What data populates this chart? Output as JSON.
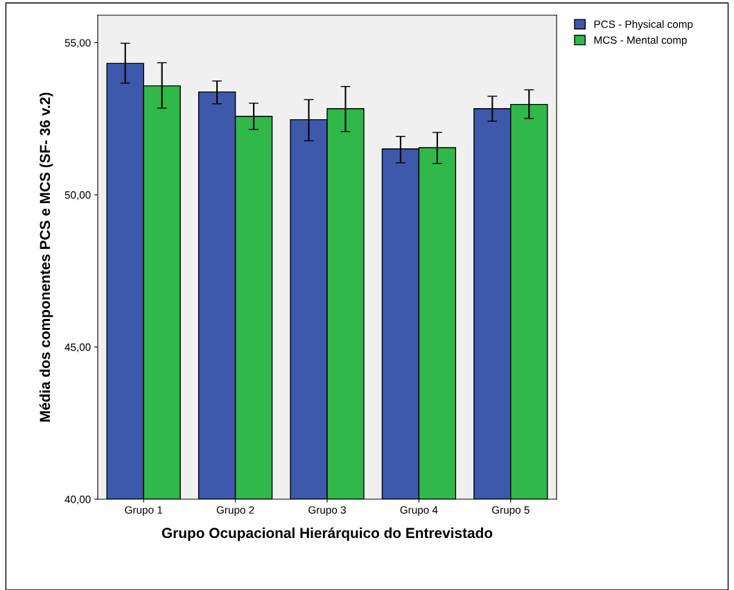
{
  "chart_data": {
    "type": "bar",
    "xlabel": "Grupo Ocupacional Hierárquico do Entrevistado",
    "ylabel": "Média dos componentes PCS e MCS (SF- 36 v.2)",
    "categories": [
      "Grupo 1",
      "Grupo 2",
      "Grupo 3",
      "Grupo 4",
      "Grupo 5"
    ],
    "series": [
      {
        "name": "PCS - Physical comp",
        "color": "#3e58ac",
        "values": [
          54.32,
          53.38,
          52.47,
          51.51,
          52.83
        ],
        "errors": [
          [
            53.67,
            54.98
          ],
          [
            52.99,
            53.74
          ],
          [
            51.78,
            53.13
          ],
          [
            51.05,
            51.92
          ],
          [
            52.42,
            53.24
          ]
        ]
      },
      {
        "name": "MCS - Mental comp",
        "color": "#30b84a",
        "values": [
          53.58,
          52.58,
          52.83,
          51.55,
          52.97
        ],
        "errors": [
          [
            52.85,
            54.34
          ],
          [
            52.15,
            53.01
          ],
          [
            52.08,
            53.56
          ],
          [
            51.03,
            52.05
          ],
          [
            52.51,
            53.45
          ]
        ]
      }
    ],
    "ylim": [
      40,
      55.9
    ],
    "yticks": [
      {
        "value": 40,
        "label": "40,00"
      },
      {
        "value": 45,
        "label": "45,00"
      },
      {
        "value": 50,
        "label": "50,00"
      },
      {
        "value": 55,
        "label": "55,00"
      }
    ],
    "legend": "top right",
    "grid": false
  }
}
